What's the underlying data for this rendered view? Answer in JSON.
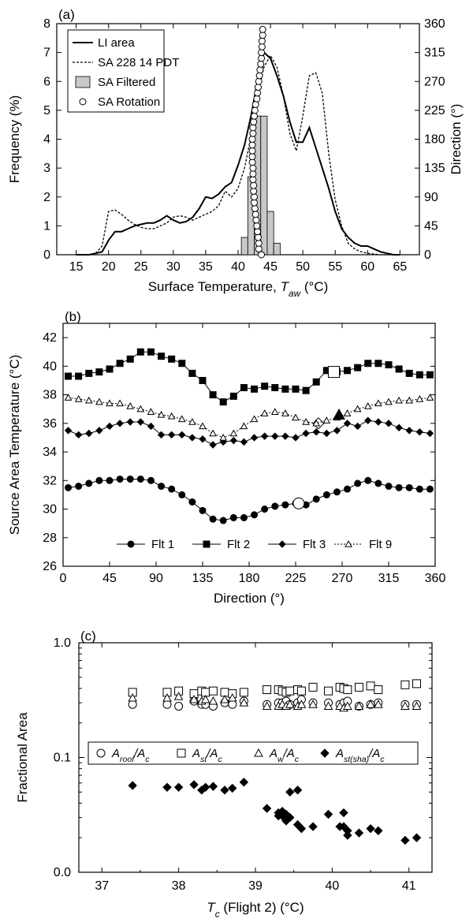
{
  "chart_data": [
    {
      "panel_label": "(a)",
      "type": "line",
      "xlabel": "Surface Temperature, ",
      "xlabel_sym": "T",
      "xlabel_sub": "aw",
      "xlabel_unit": " (°C)",
      "ylabel": "Frequency (%)",
      "y2label": "Direction (°)",
      "xlim": [
        12,
        68
      ],
      "ylim": [
        0,
        8
      ],
      "y2lim": [
        0,
        360
      ],
      "xticks": [
        15,
        20,
        25,
        30,
        35,
        40,
        45,
        50,
        55,
        60,
        65
      ],
      "yticks": [
        0,
        1,
        2,
        3,
        4,
        5,
        6,
        7,
        8
      ],
      "y2ticks": [
        0,
        45,
        90,
        135,
        180,
        225,
        270,
        315,
        360
      ],
      "legend": {
        "placement": "top-left",
        "entries": [
          "LI area",
          "SA 228 14 PDT",
          "SA Filtered",
          "SA Rotation"
        ]
      },
      "series": [
        {
          "name": "LI area",
          "style": "solid",
          "x": [
            15,
            17,
            18,
            19,
            20,
            21,
            22,
            23,
            24,
            25,
            26,
            27,
            28,
            29,
            30,
            31,
            32,
            33,
            34,
            35,
            36,
            37,
            38,
            39,
            40,
            41,
            42,
            43,
            44,
            45,
            46,
            47,
            48,
            49,
            50,
            51,
            52,
            53,
            54,
            55,
            56,
            57,
            58,
            59,
            60,
            61,
            62,
            63,
            64,
            65
          ],
          "y": [
            0,
            0,
            0.05,
            0.1,
            0.5,
            0.8,
            0.8,
            0.9,
            1.0,
            1.05,
            1.1,
            1.1,
            1.2,
            1.35,
            1.2,
            1.1,
            1.15,
            1.3,
            1.6,
            2.0,
            1.95,
            2.1,
            2.35,
            2.5,
            3.1,
            3.8,
            4.8,
            6.0,
            7.0,
            6.8,
            6.2,
            5.5,
            4.6,
            3.9,
            3.9,
            4.4,
            3.7,
            3.0,
            2.3,
            1.5,
            0.9,
            0.6,
            0.4,
            0.3,
            0.3,
            0.2,
            0.1,
            0.05,
            0,
            0
          ]
        },
        {
          "name": "SA 228 14 PDT",
          "style": "dashed",
          "x": [
            15,
            17,
            18,
            19,
            20,
            21,
            22,
            23,
            24,
            25,
            26,
            27,
            28,
            29,
            30,
            31,
            32,
            33,
            34,
            35,
            36,
            37,
            38,
            39,
            40,
            41,
            42,
            43,
            44,
            45,
            46,
            47,
            48,
            49,
            50,
            51,
            52,
            53,
            54,
            55,
            56,
            57,
            58,
            59,
            60,
            62,
            64
          ],
          "y": [
            0,
            0,
            0.05,
            0.3,
            1.5,
            1.55,
            1.4,
            1.2,
            1.05,
            0.95,
            0.9,
            0.9,
            1.0,
            1.1,
            1.3,
            1.35,
            1.3,
            1.2,
            1.3,
            1.4,
            1.5,
            1.7,
            2.2,
            2.0,
            2.3,
            3.0,
            4.1,
            5.5,
            6.5,
            6.9,
            6.5,
            5.5,
            4.2,
            3.6,
            4.8,
            6.2,
            6.3,
            5.6,
            3.5,
            1.9,
            1.0,
            0.4,
            0.2,
            0.1,
            0.05,
            0,
            0
          ]
        },
        {
          "name": "SA Filtered",
          "style": "bars",
          "x": [
            41,
            42,
            43,
            44,
            45,
            46
          ],
          "y": [
            0.6,
            2.7,
            4.8,
            4.8,
            1.5,
            0.4
          ]
        },
        {
          "name": "SA Rotation",
          "style": "open-circles",
          "axis": "right",
          "x": [
            43.6,
            43.2,
            43.2,
            43.1,
            43.0,
            42.9,
            42.8,
            42.7,
            42.6,
            42.5,
            42.5,
            42.4,
            42.4,
            42.3,
            42.3,
            42.3,
            42.2,
            42.2,
            42.2,
            42.2,
            42.2,
            42.3,
            42.3,
            42.4,
            42.5,
            42.6,
            42.7,
            42.9,
            43.0,
            43.1,
            43.2,
            43.3,
            43.4,
            43.5,
            43.6,
            43.6,
            43.7,
            43.7,
            43.8,
            43.8
          ],
          "y": [
            0,
            9,
            18,
            27,
            36,
            45,
            54,
            63,
            72,
            81,
            90,
            99,
            108,
            117,
            126,
            135,
            144,
            153,
            162,
            171,
            180,
            189,
            198,
            207,
            216,
            225,
            234,
            243,
            252,
            261,
            270,
            279,
            288,
            297,
            306,
            315,
            324,
            333,
            342,
            351
          ]
        }
      ]
    },
    {
      "panel_label": "(b)",
      "type": "line",
      "xlabel": "Direction (°)",
      "ylabel": "Source Area Temperature (°C)",
      "xlim": [
        0,
        360
      ],
      "ylim": [
        26,
        43
      ],
      "xticks": [
        0,
        45,
        90,
        135,
        180,
        225,
        270,
        315,
        360
      ],
      "yticks": [
        26,
        28,
        30,
        32,
        34,
        36,
        38,
        40,
        42
      ],
      "legend": {
        "placement": "bottom-center",
        "entries": [
          "Flt 1",
          "Flt 2",
          "Flt 3",
          "Flt 9"
        ]
      },
      "series": [
        {
          "name": "Flt 1",
          "marker": "circle",
          "x": [
            5,
            15,
            25,
            35,
            45,
            55,
            65,
            75,
            85,
            95,
            105,
            115,
            125,
            135,
            145,
            155,
            165,
            175,
            185,
            195,
            205,
            215,
            225,
            235,
            245,
            255,
            265,
            275,
            285,
            295,
            305,
            315,
            325,
            335,
            345,
            355
          ],
          "y": [
            31.5,
            31.6,
            31.8,
            32.0,
            32.0,
            32.1,
            32.1,
            32.1,
            32.0,
            31.6,
            31.4,
            31.0,
            30.5,
            29.9,
            29.3,
            29.2,
            29.4,
            29.4,
            29.6,
            30.0,
            30.2,
            30.3,
            30.4,
            30.3,
            30.7,
            31.0,
            31.2,
            31.4,
            31.8,
            32.0,
            31.8,
            31.6,
            31.5,
            31.5,
            31.4,
            31.4
          ],
          "highlight": {
            "x": 228,
            "y": 30.4
          }
        },
        {
          "name": "Flt 2",
          "marker": "square",
          "x": [
            5,
            15,
            25,
            35,
            45,
            55,
            65,
            75,
            85,
            95,
            105,
            115,
            125,
            135,
            145,
            155,
            165,
            175,
            185,
            195,
            205,
            215,
            225,
            235,
            245,
            255,
            265,
            275,
            285,
            295,
            305,
            315,
            325,
            335,
            345,
            355
          ],
          "y": [
            39.3,
            39.3,
            39.5,
            39.6,
            39.8,
            40.2,
            40.5,
            41.0,
            41.0,
            40.7,
            40.5,
            40.2,
            39.5,
            39.0,
            38.0,
            37.5,
            37.9,
            38.5,
            38.4,
            38.6,
            38.5,
            38.4,
            38.4,
            38.3,
            38.9,
            39.7,
            39.6,
            39.7,
            39.9,
            40.2,
            40.2,
            40.1,
            39.8,
            39.5,
            39.4,
            39.4
          ],
          "highlight": {
            "x": 262,
            "y": 39.6
          }
        },
        {
          "name": "Flt 3",
          "marker": "diamond",
          "x": [
            5,
            15,
            25,
            35,
            45,
            55,
            65,
            75,
            85,
            95,
            105,
            115,
            125,
            135,
            145,
            155,
            165,
            175,
            185,
            195,
            205,
            215,
            225,
            235,
            245,
            255,
            265,
            275,
            285,
            295,
            305,
            315,
            325,
            335,
            345,
            355
          ],
          "y": [
            35.5,
            35.2,
            35.3,
            35.5,
            35.8,
            36.0,
            36.1,
            36.1,
            35.8,
            35.2,
            35.2,
            35.2,
            35.0,
            34.9,
            34.5,
            34.7,
            34.8,
            34.7,
            35.0,
            35.1,
            35.1,
            35.1,
            35.0,
            35.3,
            35.4,
            35.3,
            35.5,
            36.0,
            35.8,
            36.2,
            36.1,
            36.0,
            35.7,
            35.5,
            35.4,
            35.3
          ],
          "highlight": {
            "x": 247,
            "y": 36.0
          }
        },
        {
          "name": "Flt 9",
          "marker": "triangle",
          "style": "dashed",
          "x": [
            5,
            15,
            25,
            35,
            45,
            55,
            65,
            75,
            85,
            95,
            105,
            115,
            125,
            135,
            145,
            155,
            165,
            175,
            185,
            195,
            205,
            215,
            225,
            235,
            245,
            255,
            265,
            275,
            285,
            295,
            305,
            315,
            325,
            335,
            345,
            355
          ],
          "y": [
            37.8,
            37.7,
            37.6,
            37.5,
            37.4,
            37.4,
            37.2,
            37.0,
            36.8,
            36.6,
            36.5,
            36.3,
            36.1,
            35.8,
            35.3,
            35.0,
            35.3,
            35.8,
            36.3,
            36.7,
            36.8,
            36.7,
            36.4,
            36.1,
            36.0,
            36.2,
            36.4,
            36.7,
            37.0,
            37.2,
            37.4,
            37.5,
            37.6,
            37.6,
            37.7,
            37.8
          ],
          "highlight": {
            "x": 267,
            "y": 36.6
          }
        }
      ]
    },
    {
      "panel_label": "(c)",
      "type": "scatter",
      "xlabel_sym": "T",
      "xlabel_sub": "c",
      "xlabel": " (Flight 2)  (°C)",
      "ylabel": "Fractional Area",
      "yscale": "log",
      "xlim": [
        36.7,
        41.3
      ],
      "ylim": [
        0.01,
        1.0
      ],
      "xticks": [
        37,
        38,
        39,
        40,
        41
      ],
      "yticks": [
        0.01,
        0.1,
        1.0
      ],
      "ytick_labels": [
        "0.0",
        "0.1",
        "1.0"
      ],
      "legend": {
        "placement": "middle",
        "entries": [
          {
            "sym": "A",
            "sub": "roof",
            "rest": "/A",
            "sub2": "c"
          },
          {
            "sym": "A",
            "sub": "st",
            "rest": "/A",
            "sub2": "c"
          },
          {
            "sym": "A",
            "sub": "w",
            "rest": "/A",
            "sub2": "c"
          },
          {
            "sym": "A",
            "sub": "st(sha)",
            "rest": "/A",
            "sub2": "c"
          }
        ]
      },
      "x": [
        37.4,
        37.85,
        38.0,
        38.2,
        38.3,
        38.35,
        38.45,
        38.6,
        38.7,
        38.85,
        39.15,
        39.3,
        39.35,
        39.4,
        39.45,
        39.55,
        39.6,
        39.75,
        39.95,
        40.1,
        40.15,
        40.2,
        40.35,
        40.5,
        40.6,
        40.95,
        41.1
      ],
      "series": [
        {
          "name": "Aroof/Ac",
          "marker": "open-circle",
          "values": [
            0.29,
            0.29,
            0.28,
            0.31,
            0.29,
            0.29,
            0.28,
            0.3,
            0.29,
            0.31,
            0.29,
            0.3,
            0.3,
            0.31,
            0.29,
            0.3,
            0.32,
            0.3,
            0.3,
            0.29,
            0.3,
            0.31,
            0.28,
            0.29,
            0.3,
            0.29,
            0.29
          ]
        },
        {
          "name": "Ast/Ac",
          "marker": "open-square",
          "values": [
            0.37,
            0.37,
            0.38,
            0.36,
            0.38,
            0.37,
            0.38,
            0.37,
            0.36,
            0.37,
            0.39,
            0.39,
            0.38,
            0.37,
            0.38,
            0.39,
            0.38,
            0.41,
            0.38,
            0.41,
            0.4,
            0.39,
            0.41,
            0.42,
            0.39,
            0.43,
            0.44
          ]
        },
        {
          "name": "Aw/Ac",
          "marker": "open-triangle",
          "values": [
            0.33,
            0.33,
            0.34,
            0.32,
            0.31,
            0.32,
            0.31,
            0.32,
            0.33,
            0.3,
            0.28,
            0.28,
            0.29,
            0.28,
            0.29,
            0.28,
            0.29,
            0.29,
            0.28,
            0.28,
            0.27,
            0.28,
            0.28,
            0.29,
            0.29,
            0.28,
            0.28
          ]
        },
        {
          "name": "Ast(sha)/Ac",
          "marker": "filled-diamond",
          "values": [
            0.057,
            0.055,
            0.055,
            0.058,
            0.052,
            0.055,
            0.056,
            0.052,
            0.054,
            0.061,
            0.036,
            0.033,
            0.031,
            0.032,
            0.03,
            0.026,
            0.024,
            0.025,
            0.032,
            0.025,
            0.033,
            0.021,
            0.022,
            0.024,
            0.023,
            0.019,
            0.02
          ]
        },
        {
          "name": "Ast(sha)/Ac",
          "marker": "filled-diamond",
          "values": [
            null,
            null,
            null,
            null,
            null,
            null,
            null,
            null,
            null,
            null,
            null,
            0.031,
            0.034,
            0.028,
            0.05,
            0.052,
            null,
            null,
            null,
            null,
            0.025,
            0.023,
            null,
            null,
            null,
            null,
            null
          ]
        }
      ]
    }
  ]
}
